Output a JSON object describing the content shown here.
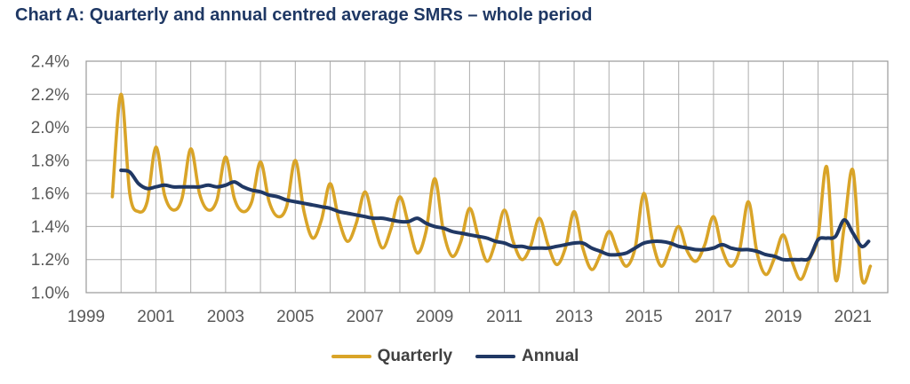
{
  "title": "Chart A: Quarterly and annual centred average SMRs – whole period",
  "colors": {
    "title": "#1F3864",
    "grid": "#ACACAC",
    "border": "#9A9A9A",
    "tick_text": "#595959",
    "legend_text": "#404040",
    "quarterly": "#D9A428",
    "annual": "#203864"
  },
  "legend": {
    "position": "bottom-center",
    "items": [
      {
        "label": "Quarterly"
      },
      {
        "label": "Annual"
      }
    ]
  },
  "chart_data": {
    "type": "line",
    "title": "Chart A: Quarterly and annual centred average SMRs – whole period",
    "xlabel": "",
    "ylabel": "",
    "xlim": [
      1999,
      2022
    ],
    "ylim": [
      1.0,
      2.4
    ],
    "grid": true,
    "x_grid_step_years": 1,
    "legend_position": "bottom-center",
    "y_tick_values": [
      2.4,
      2.2,
      2.0,
      1.8,
      1.6,
      1.4,
      1.2,
      1.0
    ],
    "y_tick_labels": [
      "2.4%",
      "2.2%",
      "2.0%",
      "1.8%",
      "1.6%",
      "1.4%",
      "1.2%",
      "1.0%"
    ],
    "x_tick_values": [
      1999,
      2001,
      2003,
      2005,
      2007,
      2009,
      2011,
      2013,
      2015,
      2017,
      2019,
      2021
    ],
    "x_tick_labels": [
      "1999",
      "2001",
      "2003",
      "2005",
      "2007",
      "2009",
      "2011",
      "2013",
      "2015",
      "2017",
      "2019",
      "2021"
    ],
    "y_unit": "percent",
    "series": [
      {
        "name": "Quarterly",
        "color": "#D9A428",
        "stroke_width": 3.6,
        "points": [
          [
            1999.75,
            1.58
          ],
          [
            2000,
            2.2
          ],
          [
            2000.25,
            1.6
          ],
          [
            2000.5,
            1.49
          ],
          [
            2000.75,
            1.55
          ],
          [
            2001,
            1.88
          ],
          [
            2001.25,
            1.59
          ],
          [
            2001.5,
            1.5
          ],
          [
            2001.75,
            1.57
          ],
          [
            2002,
            1.87
          ],
          [
            2002.25,
            1.6
          ],
          [
            2002.5,
            1.5
          ],
          [
            2002.75,
            1.56
          ],
          [
            2003,
            1.82
          ],
          [
            2003.25,
            1.57
          ],
          [
            2003.5,
            1.49
          ],
          [
            2003.75,
            1.55
          ],
          [
            2004,
            1.79
          ],
          [
            2004.25,
            1.55
          ],
          [
            2004.5,
            1.46
          ],
          [
            2004.75,
            1.52
          ],
          [
            2005,
            1.8
          ],
          [
            2005.25,
            1.49
          ],
          [
            2005.5,
            1.33
          ],
          [
            2005.75,
            1.44
          ],
          [
            2006,
            1.66
          ],
          [
            2006.25,
            1.44
          ],
          [
            2006.5,
            1.31
          ],
          [
            2006.75,
            1.42
          ],
          [
            2007,
            1.61
          ],
          [
            2007.25,
            1.42
          ],
          [
            2007.5,
            1.27
          ],
          [
            2007.75,
            1.39
          ],
          [
            2008,
            1.58
          ],
          [
            2008.25,
            1.41
          ],
          [
            2008.5,
            1.24
          ],
          [
            2008.75,
            1.37
          ],
          [
            2009,
            1.69
          ],
          [
            2009.25,
            1.37
          ],
          [
            2009.5,
            1.22
          ],
          [
            2009.75,
            1.31
          ],
          [
            2010,
            1.51
          ],
          [
            2010.25,
            1.34
          ],
          [
            2010.5,
            1.19
          ],
          [
            2010.75,
            1.31
          ],
          [
            2011,
            1.5
          ],
          [
            2011.25,
            1.31
          ],
          [
            2011.5,
            1.2
          ],
          [
            2011.75,
            1.28
          ],
          [
            2012,
            1.45
          ],
          [
            2012.25,
            1.29
          ],
          [
            2012.5,
            1.17
          ],
          [
            2012.75,
            1.27
          ],
          [
            2013,
            1.49
          ],
          [
            2013.25,
            1.27
          ],
          [
            2013.5,
            1.14
          ],
          [
            2013.75,
            1.23
          ],
          [
            2014,
            1.37
          ],
          [
            2014.25,
            1.25
          ],
          [
            2014.5,
            1.16
          ],
          [
            2014.75,
            1.27
          ],
          [
            2015,
            1.6
          ],
          [
            2015.25,
            1.31
          ],
          [
            2015.5,
            1.16
          ],
          [
            2015.75,
            1.27
          ],
          [
            2016,
            1.4
          ],
          [
            2016.25,
            1.25
          ],
          [
            2016.5,
            1.19
          ],
          [
            2016.75,
            1.29
          ],
          [
            2017,
            1.46
          ],
          [
            2017.25,
            1.26
          ],
          [
            2017.5,
            1.16
          ],
          [
            2017.75,
            1.26
          ],
          [
            2018,
            1.55
          ],
          [
            2018.25,
            1.24
          ],
          [
            2018.5,
            1.11
          ],
          [
            2018.75,
            1.21
          ],
          [
            2019,
            1.35
          ],
          [
            2019.25,
            1.19
          ],
          [
            2019.5,
            1.08
          ],
          [
            2019.75,
            1.2
          ],
          [
            2020,
            1.34
          ],
          [
            2020.25,
            1.76
          ],
          [
            2020.5,
            1.08
          ],
          [
            2020.75,
            1.4
          ],
          [
            2021,
            1.74
          ],
          [
            2021.25,
            1.09
          ],
          [
            2021.5,
            1.16
          ]
        ]
      },
      {
        "name": "Annual",
        "color": "#203864",
        "stroke_width": 4,
        "points": [
          [
            2000,
            1.74
          ],
          [
            2000.25,
            1.73
          ],
          [
            2000.5,
            1.66
          ],
          [
            2000.75,
            1.63
          ],
          [
            2001,
            1.64
          ],
          [
            2001.25,
            1.65
          ],
          [
            2001.5,
            1.64
          ],
          [
            2001.75,
            1.64
          ],
          [
            2002,
            1.64
          ],
          [
            2002.25,
            1.64
          ],
          [
            2002.5,
            1.65
          ],
          [
            2002.75,
            1.64
          ],
          [
            2003,
            1.65
          ],
          [
            2003.25,
            1.67
          ],
          [
            2003.5,
            1.64
          ],
          [
            2003.75,
            1.62
          ],
          [
            2004,
            1.61
          ],
          [
            2004.25,
            1.59
          ],
          [
            2004.5,
            1.58
          ],
          [
            2004.75,
            1.56
          ],
          [
            2005,
            1.55
          ],
          [
            2005.25,
            1.54
          ],
          [
            2005.5,
            1.53
          ],
          [
            2005.75,
            1.52
          ],
          [
            2006,
            1.51
          ],
          [
            2006.25,
            1.49
          ],
          [
            2006.5,
            1.48
          ],
          [
            2006.75,
            1.47
          ],
          [
            2007,
            1.46
          ],
          [
            2007.25,
            1.45
          ],
          [
            2007.5,
            1.45
          ],
          [
            2007.75,
            1.44
          ],
          [
            2008,
            1.43
          ],
          [
            2008.25,
            1.43
          ],
          [
            2008.5,
            1.45
          ],
          [
            2008.75,
            1.42
          ],
          [
            2009,
            1.4
          ],
          [
            2009.25,
            1.39
          ],
          [
            2009.5,
            1.37
          ],
          [
            2009.75,
            1.36
          ],
          [
            2010,
            1.35
          ],
          [
            2010.25,
            1.34
          ],
          [
            2010.5,
            1.33
          ],
          [
            2010.75,
            1.31
          ],
          [
            2011,
            1.3
          ],
          [
            2011.25,
            1.28
          ],
          [
            2011.5,
            1.28
          ],
          [
            2011.75,
            1.27
          ],
          [
            2012,
            1.27
          ],
          [
            2012.25,
            1.27
          ],
          [
            2012.5,
            1.28
          ],
          [
            2012.75,
            1.29
          ],
          [
            2013,
            1.3
          ],
          [
            2013.25,
            1.3
          ],
          [
            2013.5,
            1.27
          ],
          [
            2013.75,
            1.25
          ],
          [
            2014,
            1.23
          ],
          [
            2014.25,
            1.23
          ],
          [
            2014.5,
            1.24
          ],
          [
            2014.75,
            1.27
          ],
          [
            2015,
            1.3
          ],
          [
            2015.25,
            1.31
          ],
          [
            2015.5,
            1.31
          ],
          [
            2015.75,
            1.3
          ],
          [
            2016,
            1.28
          ],
          [
            2016.25,
            1.27
          ],
          [
            2016.5,
            1.26
          ],
          [
            2016.75,
            1.26
          ],
          [
            2017,
            1.27
          ],
          [
            2017.25,
            1.29
          ],
          [
            2017.5,
            1.27
          ],
          [
            2017.75,
            1.26
          ],
          [
            2018,
            1.26
          ],
          [
            2018.25,
            1.25
          ],
          [
            2018.5,
            1.23
          ],
          [
            2018.75,
            1.22
          ],
          [
            2019,
            1.2
          ],
          [
            2019.25,
            1.2
          ],
          [
            2019.5,
            1.2
          ],
          [
            2019.75,
            1.21
          ],
          [
            2020,
            1.32
          ],
          [
            2020.25,
            1.33
          ],
          [
            2020.5,
            1.34
          ],
          [
            2020.75,
            1.44
          ],
          [
            2021,
            1.36
          ],
          [
            2021.25,
            1.28
          ],
          [
            2021.45,
            1.31
          ]
        ]
      }
    ]
  }
}
